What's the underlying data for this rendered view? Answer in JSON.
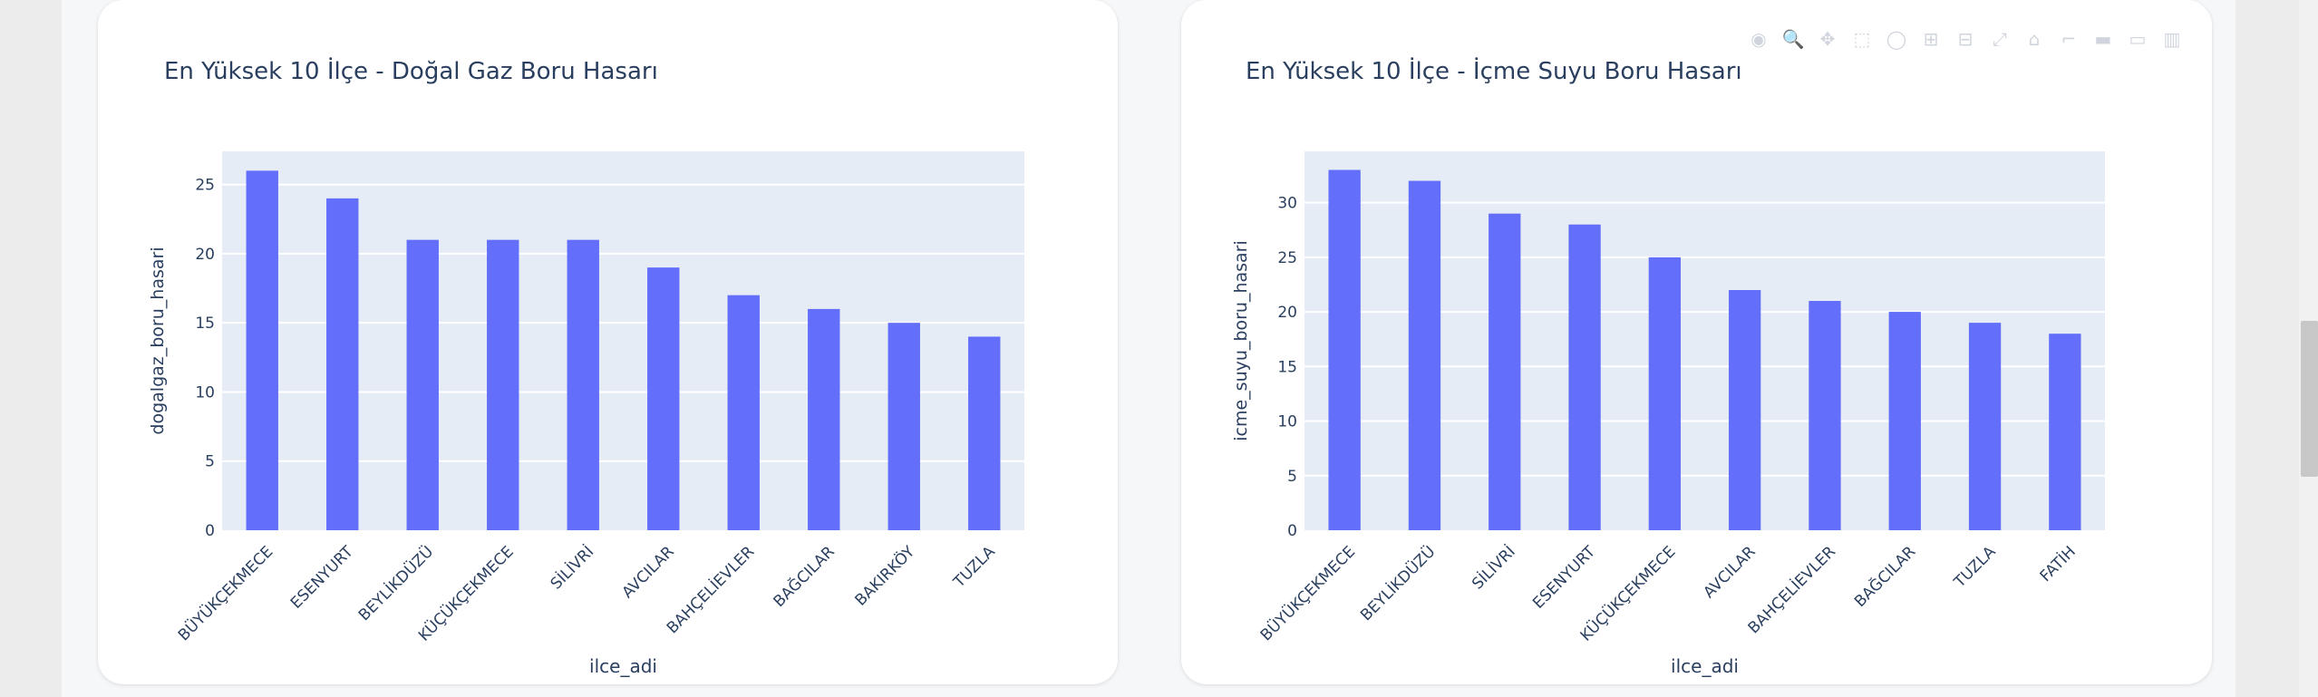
{
  "charts": [
    {
      "title": "En Yüksek 10 İlçe - Doğal Gaz Boru Hasarı",
      "xlabel": "ilce_adi",
      "ylabel": "dogalgaz_boru_hasari",
      "yticks": [
        "0",
        "5",
        "10",
        "15",
        "20",
        "25"
      ]
    },
    {
      "title": "En Yüksek 10 İlçe - İçme Suyu Boru Hasarı",
      "xlabel": "ilce_adi",
      "ylabel": "icme_suyu_boru_hasari",
      "yticks": [
        "0",
        "5",
        "10",
        "15",
        "20",
        "25",
        "30"
      ]
    }
  ],
  "toolbar": {
    "icons": [
      "camera-icon",
      "zoom-icon",
      "pan-icon",
      "box-select-icon",
      "lasso-icon",
      "zoom-in-icon",
      "zoom-out-icon",
      "autoscale-icon",
      "reset-axes-icon",
      "spike-lines-icon",
      "hover-closest-icon",
      "hover-compare-icon",
      "plotly-logo-icon"
    ],
    "glyphs": [
      "◉",
      "🔍",
      "✥",
      "⬚",
      "◯",
      "⊞",
      "⊟",
      "⤢",
      "⌂",
      "⌐",
      "▬",
      "▭",
      "▥"
    ]
  },
  "chart_data": [
    {
      "type": "bar",
      "title": "En Yüksek 10 İlçe - Doğal Gaz Boru Hasarı",
      "xlabel": "ilce_adi",
      "ylabel": "dogalgaz_boru_hasari",
      "categories": [
        "BÜYÜKÇEKMECE",
        "ESENYURT",
        "BEYLİKDÜZÜ",
        "KÜÇÜKÇEKMECE",
        "SİLİVRİ",
        "AVCILAR",
        "BAHÇELİEVLER",
        "BAĞCILAR",
        "BAKIRKÖY",
        "TUZLA"
      ],
      "values": [
        26,
        24,
        21,
        21,
        21,
        19,
        17,
        16,
        15,
        14
      ],
      "ylim": [
        0,
        27.4
      ],
      "yticks": [
        0,
        5,
        10,
        15,
        20,
        25
      ],
      "color": "#636efa",
      "plot_bg": "#e5ecf6",
      "grid": true
    },
    {
      "type": "bar",
      "title": "En Yüksek 10 İlçe - İçme Suyu Boru Hasarı",
      "xlabel": "ilce_adi",
      "ylabel": "icme_suyu_boru_hasari",
      "categories": [
        "BÜYÜKÇEKMECE",
        "BEYLİKDÜZÜ",
        "SİLİVRİ",
        "ESENYURT",
        "KÜÇÜKÇEKMECE",
        "AVCILAR",
        "BAHÇELİEVLER",
        "BAĞCILAR",
        "TUZLA",
        "FATİH"
      ],
      "values": [
        33,
        32,
        29,
        28,
        25,
        22,
        21,
        20,
        19,
        18
      ],
      "ylim": [
        0,
        34.7
      ],
      "yticks": [
        0,
        5,
        10,
        15,
        20,
        25,
        30
      ],
      "color": "#636efa",
      "plot_bg": "#e5ecf6",
      "grid": true
    }
  ]
}
